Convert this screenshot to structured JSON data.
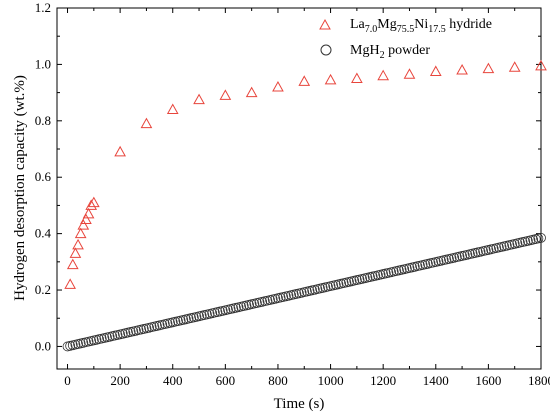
{
  "chart_data": {
    "type": "scatter",
    "xlabel": "Time (s)",
    "ylabel": "Hydrogen desorption capacity (wt.%)",
    "xlim": [
      -40,
      1800
    ],
    "ylim": [
      -0.08,
      1.2
    ],
    "xticks": [
      0,
      200,
      400,
      600,
      800,
      1000,
      1200,
      1400,
      1600,
      1800
    ],
    "xtick_labels": [
      "0",
      "200",
      "400",
      "600",
      "800",
      "1000",
      "1200",
      "1400",
      "1600",
      "1800"
    ],
    "yticks": [
      0.0,
      0.2,
      0.4,
      0.6,
      0.8,
      1.0,
      1.2
    ],
    "ytick_labels": [
      "0.0",
      "0.2",
      "0.4",
      "0.6",
      "0.8",
      "1.0",
      "1.2"
    ],
    "grid": false,
    "legend_position": "top-right",
    "series": [
      {
        "name": "La7.0Mg75.5Ni17.5 hydride",
        "legend": {
          "t1": "La",
          "s1": "7.0",
          "t2": "Mg",
          "s2": "75.5",
          "t3": "Ni",
          "s3": "17.5",
          "t4": " hydride"
        },
        "marker": "triangle",
        "color": "#e8453c",
        "x": [
          10,
          20,
          30,
          40,
          50,
          60,
          70,
          80,
          90,
          100,
          200,
          300,
          400,
          500,
          600,
          700,
          800,
          900,
          1000,
          1100,
          1200,
          1300,
          1400,
          1500,
          1600,
          1700,
          1800
        ],
        "y": [
          0.22,
          0.29,
          0.33,
          0.36,
          0.4,
          0.43,
          0.45,
          0.47,
          0.5,
          0.51,
          0.69,
          0.79,
          0.84,
          0.875,
          0.89,
          0.9,
          0.92,
          0.94,
          0.945,
          0.95,
          0.96,
          0.965,
          0.975,
          0.98,
          0.985,
          0.99,
          0.995
        ]
      },
      {
        "name": "MgH2 powder",
        "legend": {
          "t1": "MgH",
          "s1": "2",
          "t2": " powder"
        },
        "marker": "circle",
        "color": "#333333",
        "x_start": 0,
        "x_end": 1800,
        "x_step": 10,
        "y_start": 0.0,
        "y_end": 0.385
      }
    ]
  }
}
